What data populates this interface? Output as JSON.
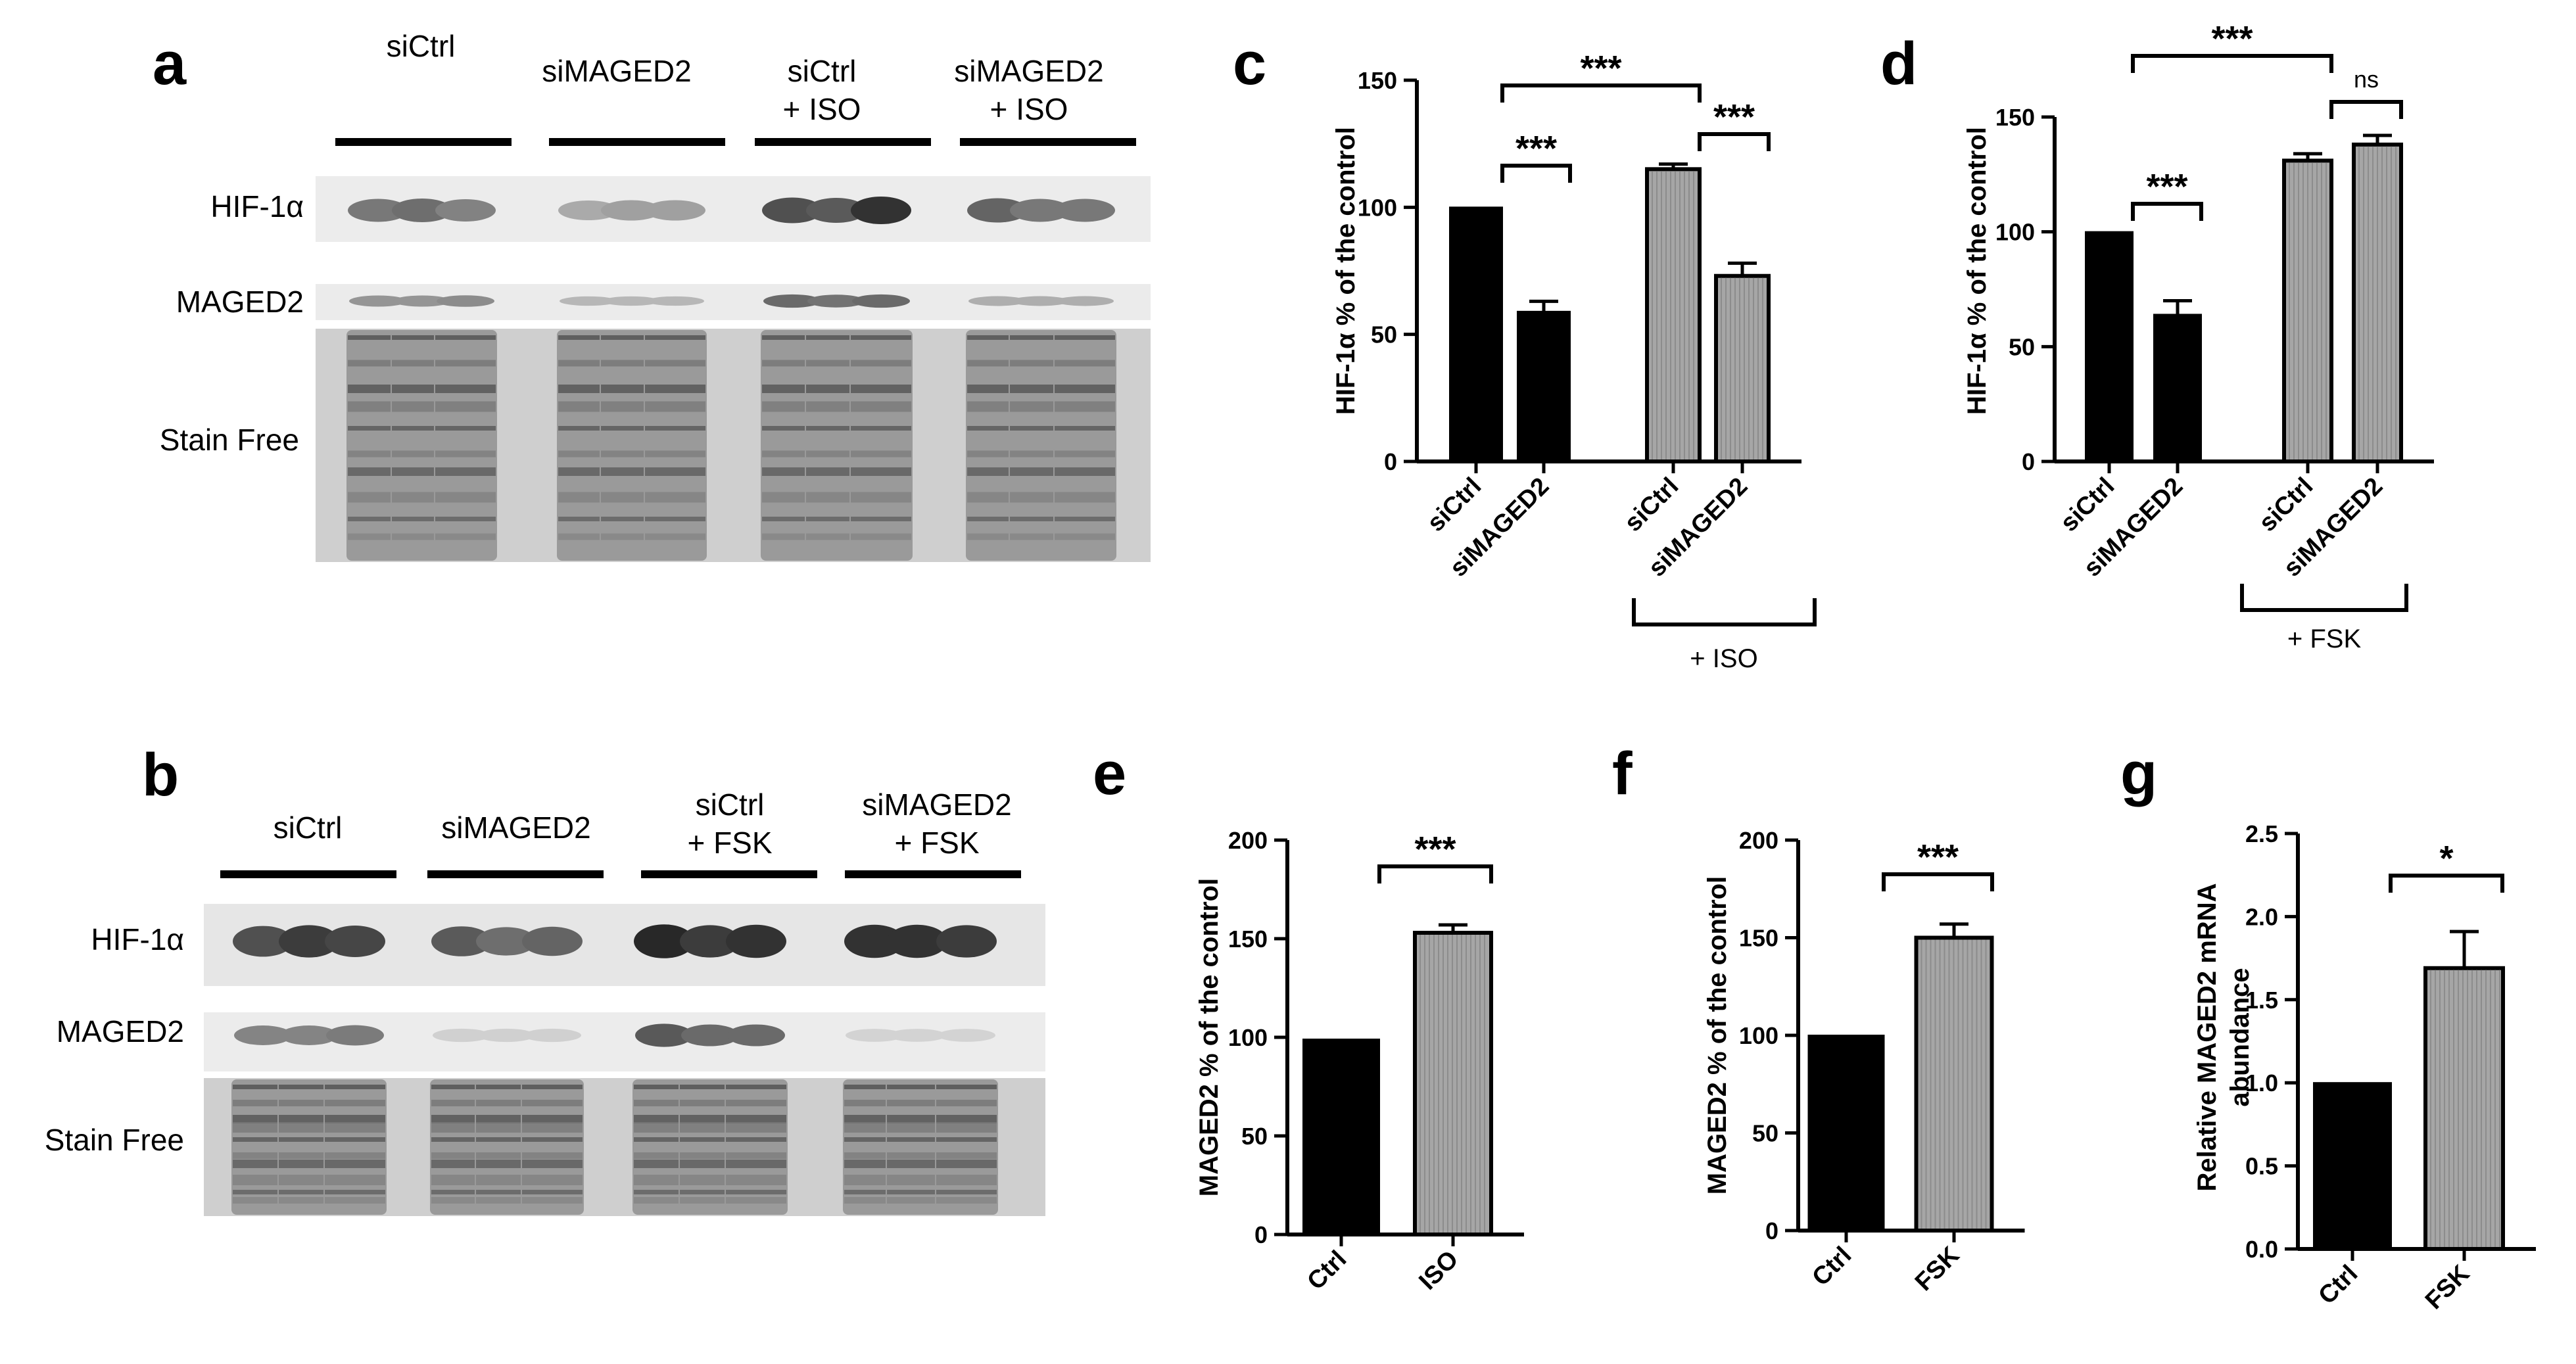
{
  "panels": {
    "a": {
      "letter": "a",
      "groups": [
        {
          "line1": "siCtrl",
          "line2": ""
        },
        {
          "line1": "siMAGED2",
          "line2": ""
        },
        {
          "line1": "siCtrl",
          "line2": "+ ISO"
        },
        {
          "line1": "siMAGED2",
          "line2": "+ ISO"
        }
      ],
      "rows": [
        "HIF-1α",
        "MAGED2",
        "Stain Free"
      ],
      "hif_intensity": [
        0.55,
        0.6,
        0.5,
        0.3,
        0.35,
        0.35,
        0.75,
        0.7,
        0.9,
        0.65,
        0.55,
        0.55
      ],
      "maged_intensity": [
        0.45,
        0.45,
        0.5,
        0.25,
        0.25,
        0.25,
        0.7,
        0.65,
        0.7,
        0.3,
        0.3,
        0.3
      ]
    },
    "b": {
      "letter": "b",
      "groups": [
        {
          "line1": "siCtrl",
          "line2": ""
        },
        {
          "line1": "siMAGED2",
          "line2": ""
        },
        {
          "line1": "siCtrl",
          "line2": "+ FSK"
        },
        {
          "line1": "siMAGED2",
          "line2": "+ FSK"
        }
      ],
      "rows": [
        "HIF-1α",
        "MAGED2",
        "Stain Free"
      ],
      "hif_intensity": [
        0.75,
        0.85,
        0.8,
        0.7,
        0.6,
        0.65,
        0.95,
        0.85,
        0.9,
        0.9,
        0.9,
        0.85
      ],
      "maged_intensity": [
        0.55,
        0.55,
        0.6,
        0.1,
        0.1,
        0.1,
        0.8,
        0.7,
        0.7,
        0.08,
        0.08,
        0.08
      ]
    }
  },
  "chart_data": [
    {
      "id": "c",
      "type": "bar",
      "letter": "c",
      "categories": [
        "siCtrl",
        "siMAGED2",
        "siCtrl",
        "siMAGED2"
      ],
      "values": [
        100,
        59,
        115,
        73
      ],
      "errors": [
        0,
        4,
        2,
        5
      ],
      "colors": [
        "#000000",
        "#000000",
        "#a6a6a6",
        "#a6a6a6"
      ],
      "ylabel": "HIF-1α % of the control",
      "ylim": [
        0,
        150
      ],
      "yticks": [
        0,
        50,
        100,
        150
      ],
      "group_label": "+ ISO",
      "sig_labels": [
        "***",
        "***",
        "***"
      ]
    },
    {
      "id": "d",
      "type": "bar",
      "letter": "d",
      "categories": [
        "siCtrl",
        "siMAGED2",
        "siCtrl",
        "siMAGED2"
      ],
      "values": [
        100,
        64,
        131,
        138
      ],
      "errors": [
        0,
        6,
        3,
        4
      ],
      "colors": [
        "#000000",
        "#000000",
        "#a6a6a6",
        "#a6a6a6"
      ],
      "ylabel": "HIF-1α % of the control",
      "ylim": [
        0,
        150
      ],
      "yticks": [
        0,
        50,
        100,
        150
      ],
      "group_label": "+ FSK",
      "sig_labels": [
        "***",
        "***",
        "ns"
      ]
    },
    {
      "id": "e",
      "type": "bar",
      "letter": "e",
      "categories": [
        "Ctrl",
        "ISO"
      ],
      "values": [
        99,
        153
      ],
      "errors": [
        0,
        4
      ],
      "colors": [
        "#000000",
        "#a6a6a6"
      ],
      "ylabel": "MAGED2 % of the control",
      "ylim": [
        0,
        200
      ],
      "yticks": [
        0,
        50,
        100,
        150,
        200
      ],
      "sig_labels": [
        "***"
      ]
    },
    {
      "id": "f",
      "type": "bar",
      "letter": "f",
      "categories": [
        "Ctrl",
        "FSK"
      ],
      "values": [
        100,
        150
      ],
      "errors": [
        0,
        7
      ],
      "colors": [
        "#000000",
        "#a6a6a6"
      ],
      "ylabel": "MAGED2 % of the control",
      "ylim": [
        0,
        200
      ],
      "yticks": [
        0,
        50,
        100,
        150,
        200
      ],
      "sig_labels": [
        "***"
      ]
    },
    {
      "id": "g",
      "type": "bar",
      "letter": "g",
      "categories": [
        "Ctrl",
        "FSK"
      ],
      "values": [
        1.0,
        1.69
      ],
      "errors": [
        0,
        0.22
      ],
      "colors": [
        "#000000",
        "#a6a6a6"
      ],
      "ylabel": "Relative MAGED2 mRNA abundance",
      "ylabel_lines": [
        "Relative MAGED2 mRNA",
        "abundance"
      ],
      "ylim": [
        0,
        2.5
      ],
      "yticks": [
        "0.0",
        "0.5",
        "1.0",
        "1.5",
        "2.0",
        "2.5"
      ],
      "sig_labels": [
        "*"
      ]
    }
  ]
}
